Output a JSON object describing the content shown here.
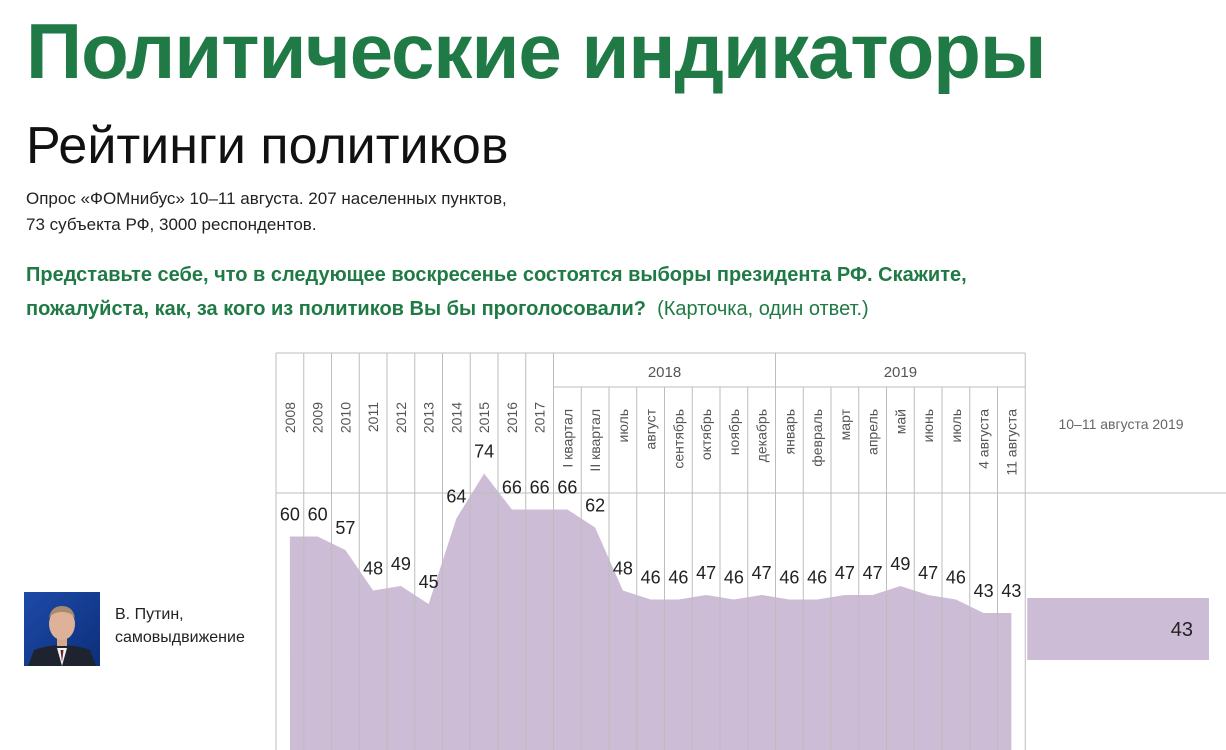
{
  "header": {
    "title": "Политические индикаторы",
    "subtitle": "Рейтинги политиков",
    "survey_line1": "Опрос «ФОМнибус» 10–11 августа. 207 населенных пунктов,",
    "survey_line2": "73 субъекта РФ, 3000 респондентов.",
    "question_line1": "Представьте себе, что в следующее воскресенье состоятся выборы президента РФ. Скажите,",
    "question_line2": "пожалуйста, как, за кого из политиков Вы бы проголосовали?",
    "question_note": "(Карточка, один ответ.)"
  },
  "politician": {
    "name_line1": "В. Путин,",
    "name_line2": "самовыдвижение",
    "photo_icon": "person-portrait-icon"
  },
  "colors": {
    "title_green": "#1f7a45",
    "area_fill": "#cdbcd6",
    "grid_line": "#bdbdbd"
  },
  "chart_data": {
    "type": "area",
    "group_labels": [
      "2018",
      "2019"
    ],
    "categories": [
      "2008",
      "2009",
      "2010",
      "2011",
      "2012",
      "2013",
      "2014",
      "2015",
      "2016",
      "2017",
      "I квартал",
      "II квартал",
      "июль",
      "август",
      "сентябрь",
      "октябрь",
      "ноябрь",
      "декабрь",
      "январь",
      "февраль",
      "март",
      "апрель",
      "май",
      "июнь",
      "июль",
      "4 августа",
      "11 августа"
    ],
    "values": [
      60,
      60,
      57,
      48,
      49,
      45,
      64,
      74,
      66,
      66,
      66,
      62,
      48,
      46,
      46,
      47,
      46,
      47,
      46,
      46,
      47,
      47,
      49,
      47,
      46,
      43,
      43
    ],
    "current_label": "10–11 августа 2019",
    "current_value": 43
  }
}
